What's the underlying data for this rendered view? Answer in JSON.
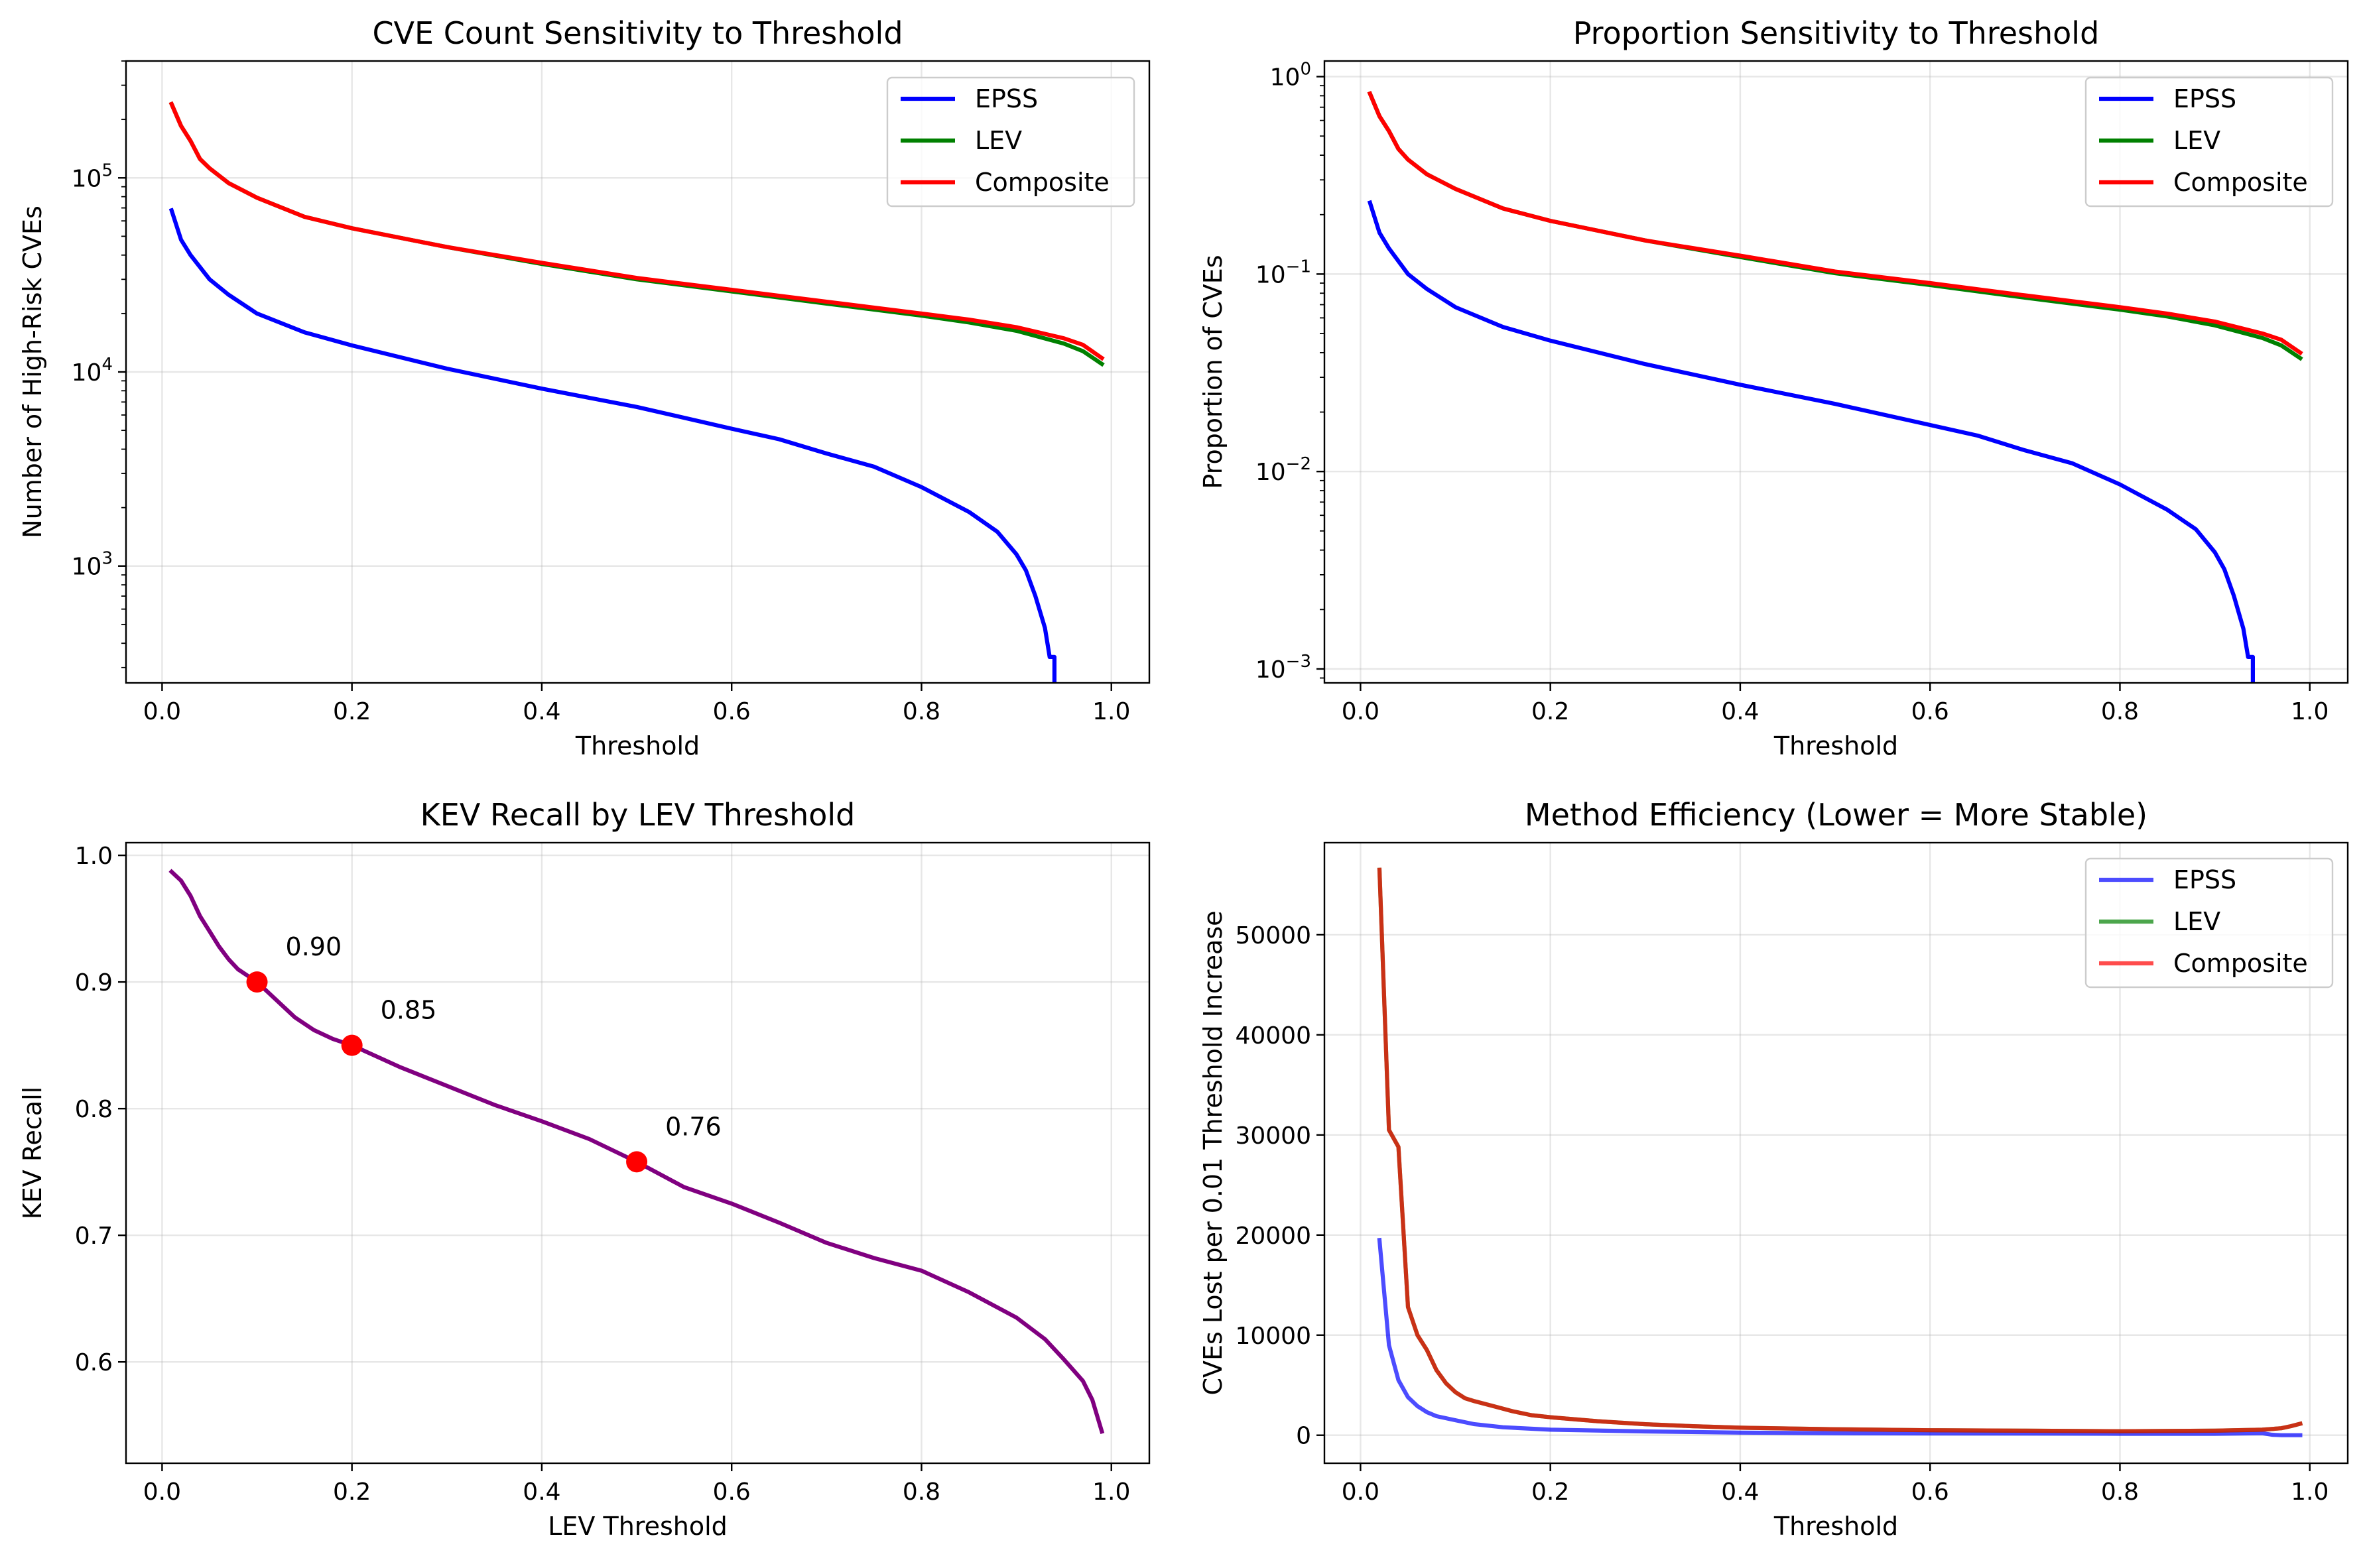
{
  "chart_data": [
    {
      "type": "line",
      "title": "CVE Count Sensitivity to Threshold",
      "xlabel": "Threshold",
      "ylabel": "Number of High-Risk CVEs",
      "xlim": [
        -0.038,
        1.04
      ],
      "ylim": [
        250,
        400000
      ],
      "yscale": "log",
      "grid": true,
      "legend": "upper right",
      "xticks": [
        {
          "v": 0,
          "t": "0.0"
        },
        {
          "v": 0.2,
          "t": "0.2"
        },
        {
          "v": 0.4,
          "t": "0.4"
        },
        {
          "v": 0.6,
          "t": "0.6"
        },
        {
          "v": 0.8,
          "t": "0.8"
        },
        {
          "v": 1.0,
          "t": "1.0"
        }
      ],
      "yticks": [
        {
          "v": 1000,
          "b": "10",
          "e": "3"
        },
        {
          "v": 10000,
          "b": "10",
          "e": "4"
        },
        {
          "v": 100000,
          "b": "10",
          "e": "5"
        }
      ],
      "series": [
        {
          "name": "EPSS",
          "color": "#0000ff",
          "x": [
            0.01,
            0.02,
            0.03,
            0.05,
            0.07,
            0.1,
            0.15,
            0.2,
            0.3,
            0.4,
            0.5,
            0.6,
            0.65,
            0.7,
            0.75,
            0.8,
            0.85,
            0.88,
            0.9,
            0.91,
            0.92,
            0.93,
            0.935,
            0.94,
            0.94
          ],
          "y": [
            68000,
            48000,
            40000,
            30000,
            25000,
            20000,
            16000,
            13700,
            10400,
            8200,
            6600,
            5100,
            4500,
            3800,
            3250,
            2550,
            1900,
            1500,
            1150,
            950,
            700,
            480,
            340,
            340,
            250
          ]
        },
        {
          "name": "LEV",
          "color": "#008000",
          "x": [
            0.01,
            0.02,
            0.03,
            0.04,
            0.05,
            0.07,
            0.1,
            0.15,
            0.2,
            0.3,
            0.4,
            0.5,
            0.6,
            0.7,
            0.8,
            0.85,
            0.9,
            0.95,
            0.97,
            0.99
          ],
          "y": [
            240000,
            185000,
            155000,
            125000,
            112000,
            94000,
            79000,
            63000,
            55000,
            44000,
            36000,
            30000,
            26000,
            22500,
            19500,
            18000,
            16300,
            14000,
            12800,
            11000
          ]
        },
        {
          "name": "Composite",
          "color": "#ff0000",
          "x": [
            0.01,
            0.02,
            0.03,
            0.04,
            0.05,
            0.07,
            0.1,
            0.15,
            0.2,
            0.3,
            0.4,
            0.5,
            0.6,
            0.7,
            0.8,
            0.85,
            0.9,
            0.95,
            0.97,
            0.99
          ],
          "y": [
            240000,
            185000,
            155000,
            125000,
            112000,
            94000,
            79000,
            63000,
            55000,
            44000,
            36500,
            30500,
            26500,
            23000,
            20000,
            18600,
            17000,
            14900,
            13800,
            11800
          ]
        }
      ]
    },
    {
      "type": "line",
      "title": "Proportion Sensitivity to Threshold",
      "xlabel": "Threshold",
      "ylabel": "Proportion of CVEs",
      "xlim": [
        -0.038,
        1.04
      ],
      "ylim": [
        0.00085,
        1.2
      ],
      "yscale": "log",
      "grid": true,
      "legend": "upper right",
      "xticks": [
        {
          "v": 0,
          "t": "0.0"
        },
        {
          "v": 0.2,
          "t": "0.2"
        },
        {
          "v": 0.4,
          "t": "0.4"
        },
        {
          "v": 0.6,
          "t": "0.6"
        },
        {
          "v": 0.8,
          "t": "0.8"
        },
        {
          "v": 1.0,
          "t": "1.0"
        }
      ],
      "yticks": [
        {
          "v": 0.001,
          "b": "10",
          "e": "−3"
        },
        {
          "v": 0.01,
          "b": "10",
          "e": "−2"
        },
        {
          "v": 0.1,
          "b": "10",
          "e": "−1"
        },
        {
          "v": 1,
          "b": "10",
          "e": "0"
        }
      ],
      "series": [
        {
          "name": "EPSS",
          "color": "#0000ff",
          "x": [
            0.01,
            0.02,
            0.03,
            0.05,
            0.07,
            0.1,
            0.15,
            0.2,
            0.3,
            0.4,
            0.5,
            0.6,
            0.65,
            0.7,
            0.75,
            0.8,
            0.85,
            0.88,
            0.9,
            0.91,
            0.92,
            0.93,
            0.935,
            0.94,
            0.94
          ],
          "y": [
            0.23,
            0.162,
            0.135,
            0.1,
            0.084,
            0.068,
            0.054,
            0.046,
            0.035,
            0.0275,
            0.022,
            0.0172,
            0.0152,
            0.0128,
            0.011,
            0.0086,
            0.0064,
            0.0051,
            0.0039,
            0.0032,
            0.00235,
            0.0016,
            0.00115,
            0.00115,
            0.00085
          ]
        },
        {
          "name": "LEV",
          "color": "#008000",
          "x": [
            0.01,
            0.02,
            0.03,
            0.04,
            0.05,
            0.07,
            0.1,
            0.15,
            0.2,
            0.3,
            0.4,
            0.5,
            0.6,
            0.7,
            0.8,
            0.85,
            0.9,
            0.95,
            0.97,
            0.99
          ],
          "y": [
            0.82,
            0.63,
            0.53,
            0.43,
            0.38,
            0.32,
            0.27,
            0.215,
            0.186,
            0.148,
            0.122,
            0.101,
            0.088,
            0.076,
            0.066,
            0.061,
            0.055,
            0.0475,
            0.0435,
            0.0375
          ]
        },
        {
          "name": "Composite",
          "color": "#ff0000",
          "x": [
            0.01,
            0.02,
            0.03,
            0.04,
            0.05,
            0.07,
            0.1,
            0.15,
            0.2,
            0.3,
            0.4,
            0.5,
            0.6,
            0.7,
            0.8,
            0.85,
            0.9,
            0.95,
            0.97,
            0.99
          ],
          "y": [
            0.82,
            0.63,
            0.53,
            0.43,
            0.38,
            0.32,
            0.27,
            0.215,
            0.186,
            0.148,
            0.124,
            0.103,
            0.09,
            0.078,
            0.068,
            0.063,
            0.0575,
            0.05,
            0.0465,
            0.04
          ]
        }
      ]
    },
    {
      "type": "line",
      "title": "KEV Recall by LEV Threshold",
      "xlabel": "LEV Threshold",
      "ylabel": "KEV Recall",
      "xlim": [
        -0.038,
        1.04
      ],
      "ylim": [
        0.52,
        1.01
      ],
      "grid": true,
      "xticks": [
        {
          "v": 0,
          "t": "0.0"
        },
        {
          "v": 0.2,
          "t": "0.2"
        },
        {
          "v": 0.4,
          "t": "0.4"
        },
        {
          "v": 0.6,
          "t": "0.6"
        },
        {
          "v": 0.8,
          "t": "0.8"
        },
        {
          "v": 1.0,
          "t": "1.0"
        }
      ],
      "yticks": [
        {
          "v": 0.6,
          "t": "0.6"
        },
        {
          "v": 0.7,
          "t": "0.7"
        },
        {
          "v": 0.8,
          "t": "0.8"
        },
        {
          "v": 0.9,
          "t": "0.9"
        },
        {
          "v": 1.0,
          "t": "1.0"
        }
      ],
      "series": [
        {
          "name": "",
          "color": "#800080",
          "x": [
            0.01,
            0.02,
            0.03,
            0.04,
            0.05,
            0.06,
            0.07,
            0.08,
            0.09,
            0.1,
            0.12,
            0.14,
            0.16,
            0.18,
            0.2,
            0.25,
            0.3,
            0.35,
            0.4,
            0.45,
            0.5,
            0.55,
            0.6,
            0.65,
            0.7,
            0.75,
            0.8,
            0.85,
            0.9,
            0.93,
            0.95,
            0.97,
            0.98,
            0.99
          ],
          "y": [
            0.987,
            0.98,
            0.968,
            0.952,
            0.94,
            0.928,
            0.918,
            0.91,
            0.905,
            0.9,
            0.886,
            0.872,
            0.862,
            0.855,
            0.85,
            0.833,
            0.818,
            0.803,
            0.79,
            0.776,
            0.758,
            0.738,
            0.725,
            0.71,
            0.694,
            0.682,
            0.672,
            0.655,
            0.635,
            0.618,
            0.602,
            0.585,
            0.57,
            0.545
          ]
        }
      ],
      "markers": [
        {
          "x": 0.1,
          "y": 0.9,
          "label": "0.90"
        },
        {
          "x": 0.2,
          "y": 0.85,
          "label": "0.85"
        },
        {
          "x": 0.5,
          "y": 0.758,
          "label": "0.76"
        }
      ],
      "marker_color": "#ff0000"
    },
    {
      "type": "line",
      "title": "Method Efficiency (Lower = More Stable)",
      "xlabel": "Threshold",
      "ylabel": "CVEs Lost per 0.01 Threshold Increase",
      "xlim": [
        -0.038,
        1.04
      ],
      "ylim": [
        -2800,
        59200
      ],
      "grid": true,
      "legend": "upper right",
      "xticks": [
        {
          "v": 0,
          "t": "0.0"
        },
        {
          "v": 0.2,
          "t": "0.2"
        },
        {
          "v": 0.4,
          "t": "0.4"
        },
        {
          "v": 0.6,
          "t": "0.6"
        },
        {
          "v": 0.8,
          "t": "0.8"
        },
        {
          "v": 1.0,
          "t": "1.0"
        }
      ],
      "yticks": [
        {
          "v": 0,
          "t": "0"
        },
        {
          "v": 10000,
          "t": "10000"
        },
        {
          "v": 20000,
          "t": "20000"
        },
        {
          "v": 30000,
          "t": "30000"
        },
        {
          "v": 40000,
          "t": "40000"
        },
        {
          "v": 50000,
          "t": "50000"
        }
      ],
      "series": [
        {
          "name": "EPSS",
          "color": "#0000ff",
          "alpha": 0.7,
          "x": [
            0.02,
            0.03,
            0.04,
            0.05,
            0.06,
            0.07,
            0.08,
            0.1,
            0.12,
            0.15,
            0.2,
            0.3,
            0.4,
            0.5,
            0.6,
            0.7,
            0.8,
            0.9,
            0.95,
            0.96,
            0.97,
            0.99
          ],
          "y": [
            19500,
            9000,
            5500,
            3800,
            2900,
            2300,
            1900,
            1500,
            1100,
            800,
            550,
            380,
            260,
            200,
            180,
            170,
            150,
            150,
            200,
            50,
            0,
            0
          ]
        },
        {
          "name": "LEV",
          "color": "#008000",
          "alpha": 0.7,
          "x": [
            0.02,
            0.03,
            0.04,
            0.05,
            0.06,
            0.07,
            0.08,
            0.09,
            0.1,
            0.11,
            0.12,
            0.14,
            0.16,
            0.18,
            0.2,
            0.25,
            0.3,
            0.35,
            0.4,
            0.5,
            0.6,
            0.7,
            0.8,
            0.9,
            0.95,
            0.97,
            0.98,
            0.99
          ],
          "y": [
            56500,
            30500,
            28800,
            12800,
            10000,
            8500,
            6500,
            5200,
            4300,
            3700,
            3400,
            2900,
            2400,
            2000,
            1800,
            1400,
            1100,
            900,
            750,
            600,
            500,
            450,
            400,
            450,
            550,
            700,
            900,
            1150
          ]
        },
        {
          "name": "Composite",
          "color": "#ff0000",
          "alpha": 0.7,
          "x": [
            0.02,
            0.03,
            0.04,
            0.05,
            0.06,
            0.07,
            0.08,
            0.09,
            0.1,
            0.11,
            0.12,
            0.14,
            0.16,
            0.18,
            0.2,
            0.25,
            0.3,
            0.35,
            0.4,
            0.5,
            0.6,
            0.7,
            0.8,
            0.9,
            0.95,
            0.97,
            0.98,
            0.99
          ],
          "y": [
            56500,
            30500,
            28800,
            12800,
            10000,
            8500,
            6500,
            5200,
            4300,
            3700,
            3400,
            2900,
            2400,
            2000,
            1800,
            1400,
            1100,
            900,
            750,
            600,
            500,
            450,
            400,
            450,
            550,
            700,
            900,
            1150
          ]
        }
      ]
    }
  ]
}
